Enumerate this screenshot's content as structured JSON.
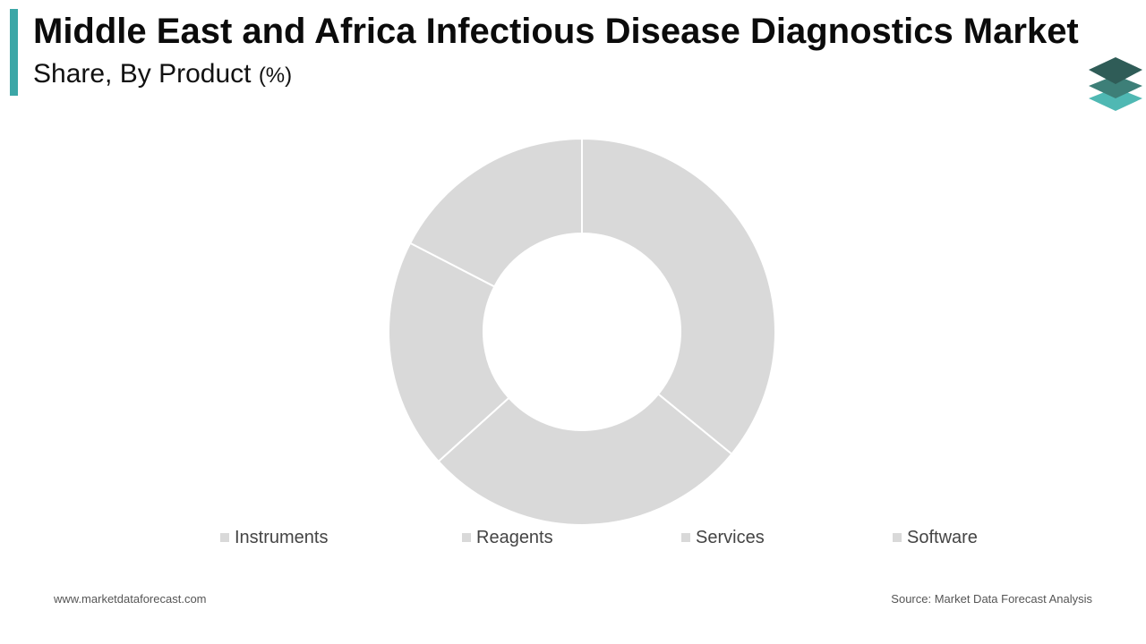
{
  "header": {
    "title": "Middle East and Africa Infectious Disease Diagnostics Market",
    "subtitle": "Share, By Product",
    "unit": "(%)"
  },
  "colors": {
    "accent": "#3ca7a7",
    "slice_fill": "#d9d9d9",
    "slice_stroke": "#ffffff",
    "legend_swatch": "#d9d9d9",
    "logo_dark": "#2f5c57",
    "logo_mid": "#3d7f78",
    "logo_light": "#4fb8b3"
  },
  "logo": {
    "icon": "stacked-layers-icon"
  },
  "chart_data": {
    "type": "pie",
    "donut": true,
    "categories": [
      "Instruments",
      "Reagents",
      "Services",
      "Software"
    ],
    "values": [
      35.9,
      27.4,
      19.3,
      17.4
    ],
    "start_angle_deg": 0,
    "direction": "clockwise",
    "data_labels": false,
    "legend_position": "bottom"
  },
  "footer": {
    "website": "www.marketdataforecast.com",
    "source": "Source: Market Data Forecast Analysis"
  }
}
